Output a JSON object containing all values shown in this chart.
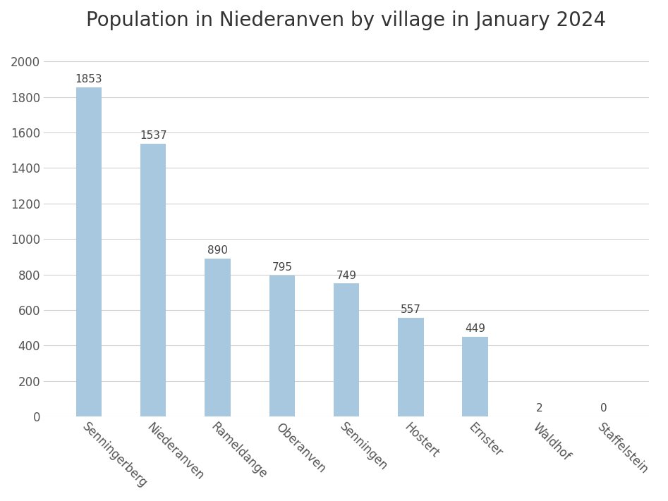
{
  "title": "Population in Niederanven by village in January 2024",
  "categories": [
    "Senningerberg",
    "Niederanven",
    "Rameldange",
    "Oberanven",
    "Senningen",
    "Hostert",
    "Ernster",
    "Waldhof",
    "Staffelstein"
  ],
  "values": [
    1853,
    1537,
    890,
    795,
    749,
    557,
    449,
    2,
    0
  ],
  "bar_color": "#a8c8e0",
  "ylim": [
    0,
    2100
  ],
  "yticks": [
    0,
    200,
    400,
    600,
    800,
    1000,
    1200,
    1400,
    1600,
    1800,
    2000
  ],
  "title_fontsize": 20,
  "label_fontsize": 11,
  "tick_fontsize": 12,
  "background_color": "#ffffff",
  "grid_color": "#d0d0d0",
  "bar_width": 0.4
}
